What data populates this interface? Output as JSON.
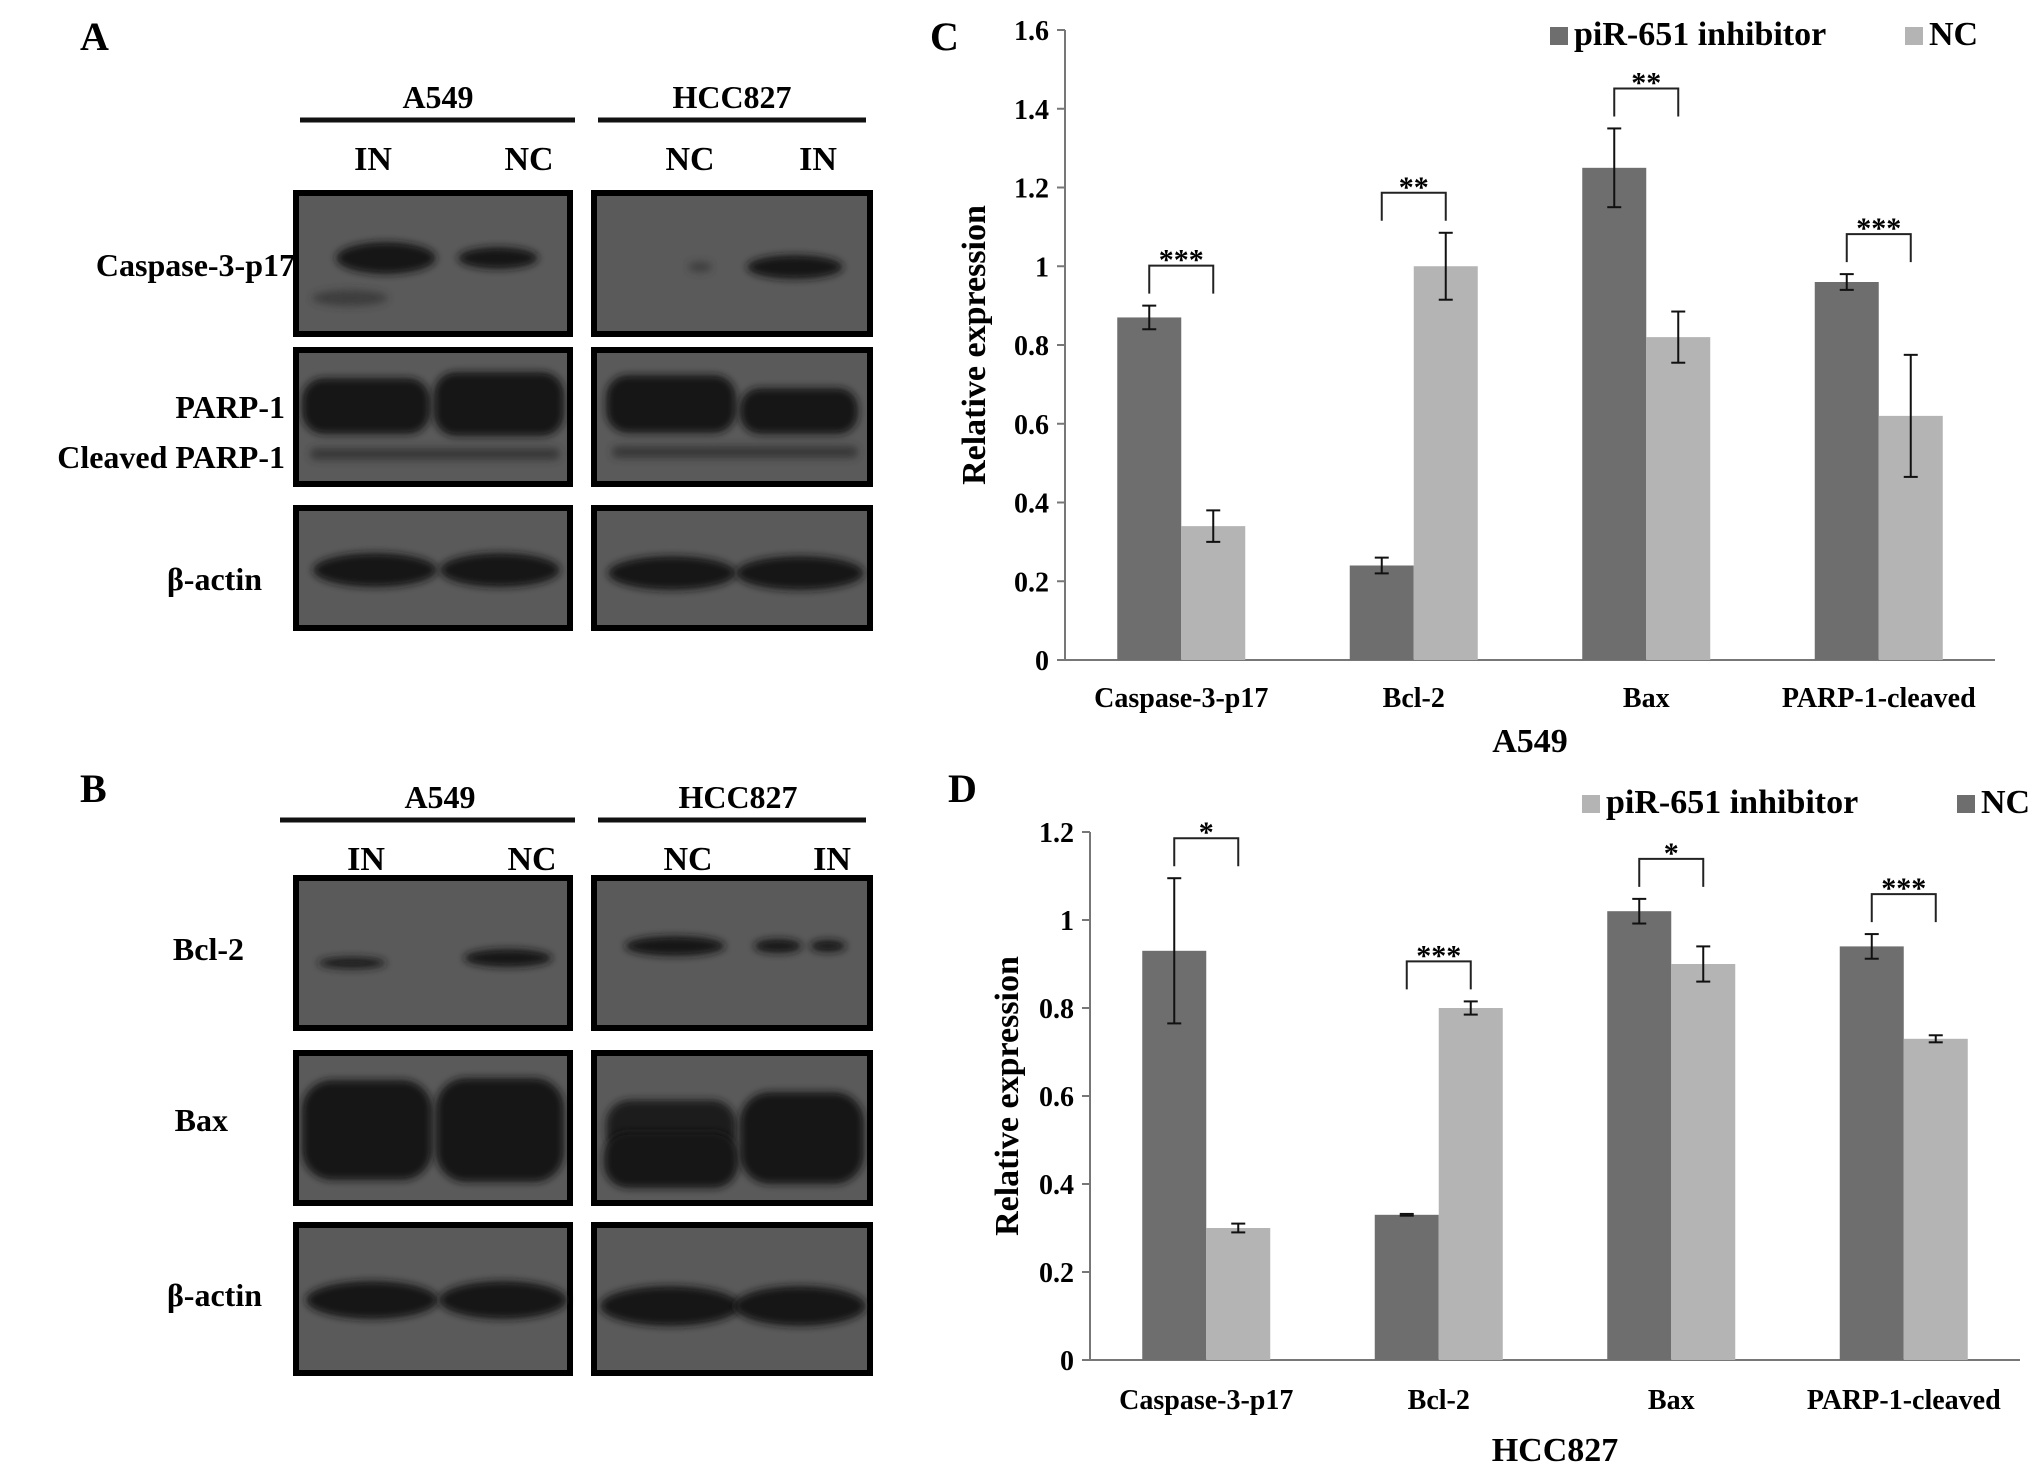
{
  "colors": {
    "dark_bar": "#6e6e6e",
    "light_bar": "#b4b4b4",
    "blot_bg": "#5a5a5a",
    "band": "#151515"
  },
  "panels": {
    "A": {
      "letter": "A",
      "groups": [
        {
          "label": "A549",
          "lanes": [
            "IN",
            "NC"
          ]
        },
        {
          "label": "HCC827",
          "lanes": [
            "NC",
            "IN"
          ]
        }
      ],
      "rows": [
        {
          "label": "Caspase-3-p17",
          "intensities": [
            0.95,
            0.6,
            0.15,
            0.85
          ]
        },
        {
          "label": "PARP-1",
          "label2": "Cleaved PARP-1",
          "intensities": [
            1,
            1,
            1,
            0.95
          ]
        },
        {
          "label": "β-actin",
          "intensities": [
            0.95,
            0.95,
            0.95,
            0.95
          ]
        }
      ]
    },
    "B": {
      "letter": "B",
      "groups": [
        {
          "label": "A549",
          "lanes": [
            "IN",
            "NC"
          ]
        },
        {
          "label": "HCC827",
          "lanes": [
            "NC",
            "IN"
          ]
        }
      ],
      "rows": [
        {
          "label": "Bcl-2",
          "intensities": [
            0.35,
            0.7,
            0.85,
            0.55
          ]
        },
        {
          "label": "Bax",
          "intensities": [
            1,
            1,
            0.95,
            1
          ]
        },
        {
          "label": "β-actin",
          "intensities": [
            0.95,
            0.95,
            0.95,
            0.95
          ]
        }
      ]
    },
    "C": {
      "letter": "C"
    },
    "D": {
      "letter": "D"
    }
  },
  "chart_data": [
    {
      "type": "bar",
      "panel": "C",
      "xlabel": "A549",
      "ylabel": "Relative expression",
      "ylim": [
        0,
        1.6
      ],
      "yticks": [
        "0",
        "0.2",
        "0.4",
        "0.6",
        "0.8",
        "1",
        "1.2",
        "1.4",
        "1.6"
      ],
      "categories": [
        "Caspase-3-p17",
        "Bcl-2",
        "Bax",
        "PARP-1-cleaved"
      ],
      "series": [
        {
          "name": "piR-651 inhibitor",
          "color": "#6e6e6e",
          "values": [
            0.87,
            0.24,
            1.25,
            0.96
          ],
          "errors": [
            0.03,
            0.02,
            0.1,
            0.02
          ]
        },
        {
          "name": "NC",
          "color": "#b4b4b4",
          "values": [
            0.34,
            1.0,
            0.82,
            0.62
          ],
          "errors": [
            0.04,
            0.085,
            0.065,
            0.155
          ]
        }
      ],
      "significance": [
        "***",
        "**",
        "**",
        "***"
      ],
      "legend": "top-right",
      "grid": false
    },
    {
      "type": "bar",
      "panel": "D",
      "xlabel": "HCC827",
      "ylabel": "Relative expression",
      "ylim": [
        0,
        1.2
      ],
      "yticks": [
        "0",
        "0.2",
        "0.4",
        "0.6",
        "0.8",
        "1",
        "1.2"
      ],
      "categories": [
        "Caspase-3-p17",
        "Bcl-2",
        "Bax",
        "PARP-1-cleaved"
      ],
      "series": [
        {
          "name": "piR-651 inhibitor",
          "color": "#b4b4b4",
          "values": [
            0.3,
            0.8,
            0.9,
            0.73
          ],
          "errors": [
            0.01,
            0.015,
            0.04,
            0.008
          ]
        },
        {
          "name": "NC",
          "color": "#6e6e6e",
          "values": [
            0.93,
            0.33,
            1.02,
            0.94
          ],
          "errors": [
            0.165,
            0.002,
            0.028,
            0.028
          ]
        }
      ],
      "series_draw_order": [
        1,
        0
      ],
      "significance": [
        "*",
        "***",
        "*",
        "***"
      ],
      "legend": "top-right",
      "grid": false
    }
  ]
}
